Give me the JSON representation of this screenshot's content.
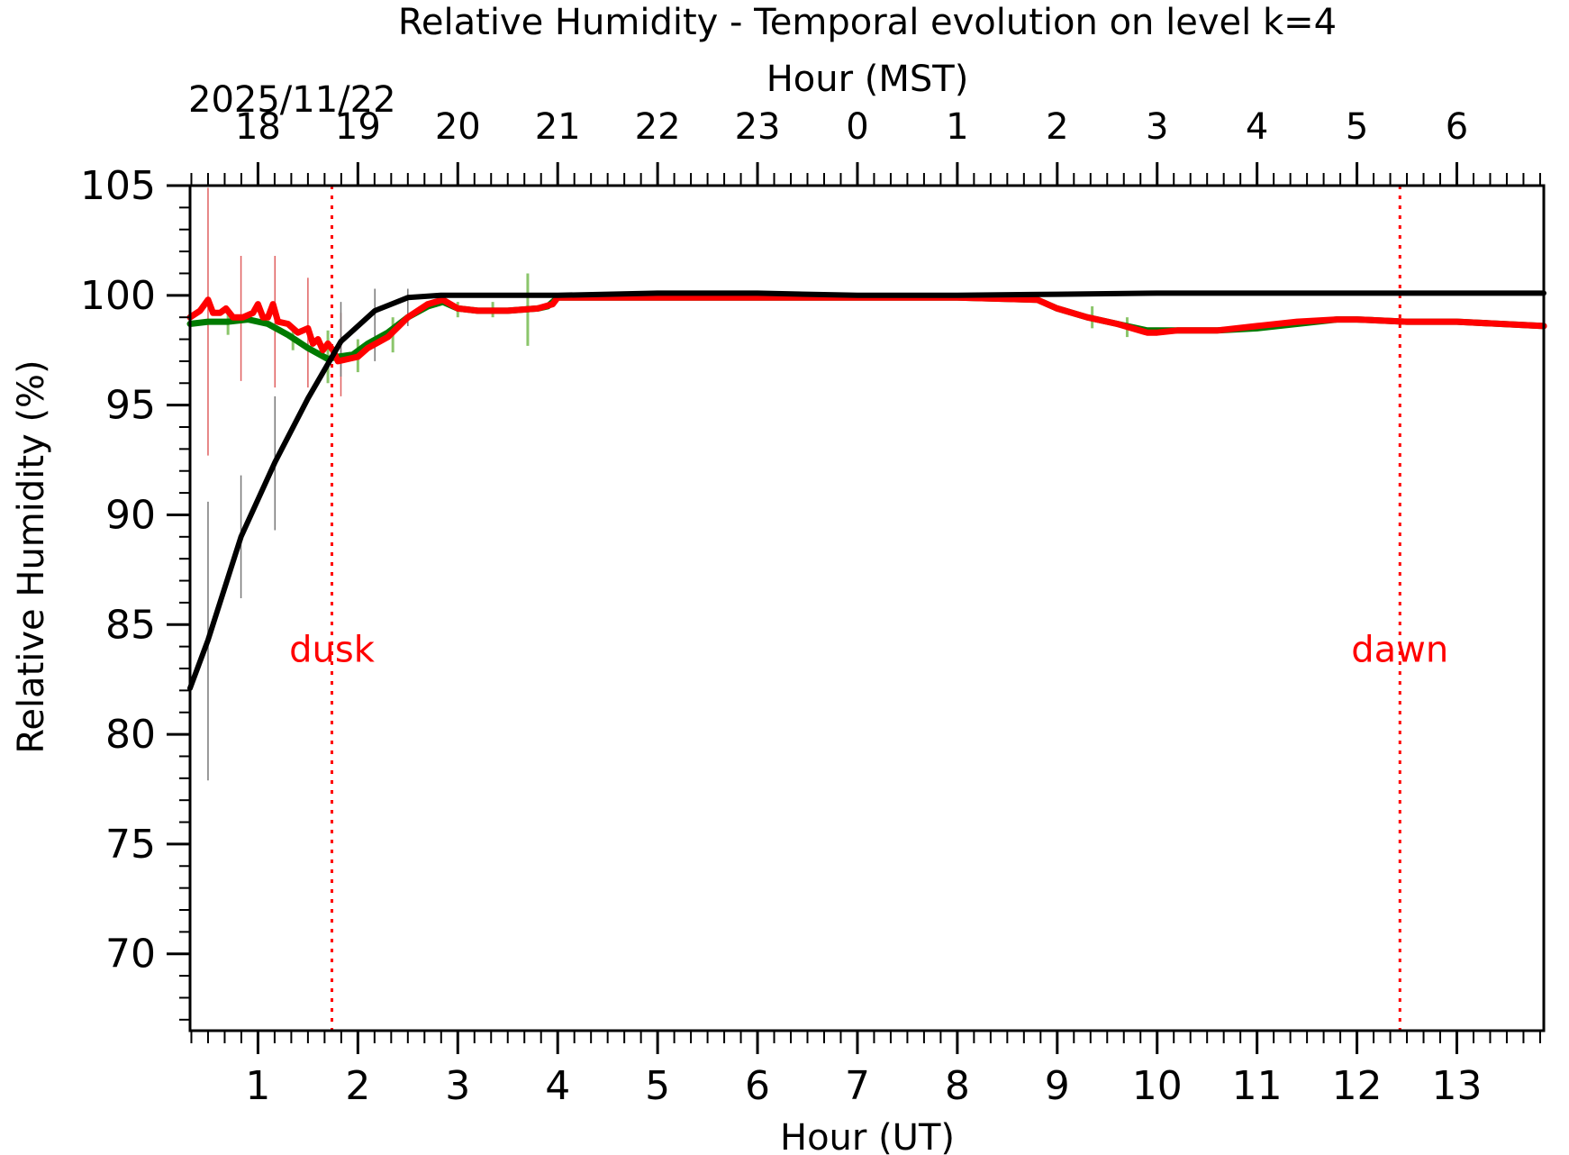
{
  "chart_data": {
    "type": "line",
    "title": "Relative Humidity - Temporal evolution on level k=4",
    "date_label": "2025/11/22",
    "xlabel": "Hour (UT)",
    "x2label": "Hour (MST)",
    "ylabel": "Relative Humidity (%)",
    "xlim": [
      0.32,
      13.87
    ],
    "ylim": [
      66.5,
      105
    ],
    "x_ticks": [
      1,
      2,
      3,
      4,
      5,
      6,
      7,
      8,
      9,
      10,
      11,
      12,
      13
    ],
    "x_tick_labels": [
      "1",
      "2",
      "3",
      "4",
      "5",
      "6",
      "7",
      "8",
      "9",
      "10",
      "11",
      "12",
      "13"
    ],
    "x2_ticks": [
      1,
      2,
      3,
      4,
      5,
      6,
      7,
      8,
      9,
      10,
      11,
      12,
      13
    ],
    "x2_tick_labels": [
      "18",
      "19",
      "20",
      "21",
      "22",
      "23",
      "0",
      "1",
      "2",
      "3",
      "4",
      "5",
      "6"
    ],
    "y_ticks": [
      70,
      75,
      80,
      85,
      90,
      95,
      100,
      105
    ],
    "y_tick_labels": [
      "70",
      "75",
      "80",
      "85",
      "90",
      "95",
      "100",
      "105"
    ],
    "grid": false,
    "events": [
      {
        "name": "dusk",
        "x": 1.74,
        "color": "#ff0000",
        "label_y": 83.3
      },
      {
        "name": "dawn",
        "x": 12.43,
        "color": "#ff0000",
        "label_y": 83.3
      }
    ],
    "series": [
      {
        "name": "green",
        "color": "#007a00",
        "x": [
          0.32,
          0.5,
          0.7,
          0.9,
          1.1,
          1.3,
          1.5,
          1.7,
          1.8,
          1.95,
          2.1,
          2.3,
          2.5,
          2.7,
          2.85,
          3.0,
          3.2,
          3.5,
          3.8,
          3.9,
          4.0,
          4.5,
          5.0,
          6.0,
          7.0,
          8.0,
          8.8,
          9.0,
          9.3,
          9.6,
          9.9,
          10.2,
          10.6,
          11.0,
          11.4,
          11.8,
          12.0,
          12.5,
          13.0,
          13.87
        ],
        "y": [
          98.7,
          98.8,
          98.8,
          98.9,
          98.7,
          98.2,
          97.6,
          97.1,
          97.2,
          97.3,
          97.8,
          98.3,
          99.0,
          99.5,
          99.7,
          99.4,
          99.3,
          99.3,
          99.4,
          99.5,
          99.9,
          99.9,
          99.9,
          99.9,
          99.9,
          99.9,
          99.8,
          99.4,
          99.0,
          98.7,
          98.4,
          98.4,
          98.4,
          98.5,
          98.7,
          98.9,
          98.9,
          98.8,
          98.8,
          98.6
        ]
      },
      {
        "name": "red",
        "color": "#ff0000",
        "x": [
          0.32,
          0.42,
          0.5,
          0.55,
          0.62,
          0.68,
          0.75,
          0.85,
          0.95,
          1.0,
          1.05,
          1.1,
          1.15,
          1.2,
          1.3,
          1.4,
          1.5,
          1.55,
          1.6,
          1.65,
          1.7,
          1.75,
          1.8,
          1.9,
          2.0,
          2.1,
          2.3,
          2.5,
          2.7,
          2.85,
          3.0,
          3.2,
          3.5,
          3.8,
          3.95,
          4.0,
          4.5,
          5.0,
          6.0,
          7.0,
          8.0,
          8.8,
          9.0,
          9.3,
          9.6,
          9.9,
          10.0,
          10.2,
          10.6,
          11.0,
          11.4,
          11.8,
          12.0,
          12.5,
          13.0,
          13.87
        ],
        "y": [
          99.0,
          99.3,
          99.8,
          99.2,
          99.2,
          99.4,
          99.0,
          99.0,
          99.2,
          99.6,
          99.0,
          99.0,
          99.6,
          98.8,
          98.7,
          98.3,
          98.5,
          97.8,
          98.0,
          97.5,
          97.8,
          97.5,
          97.0,
          97.1,
          97.2,
          97.6,
          98.1,
          99.0,
          99.6,
          99.8,
          99.4,
          99.3,
          99.3,
          99.4,
          99.6,
          99.9,
          99.9,
          99.9,
          99.9,
          99.9,
          99.9,
          99.8,
          99.4,
          99.0,
          98.7,
          98.3,
          98.3,
          98.4,
          98.4,
          98.6,
          98.8,
          98.9,
          98.9,
          98.8,
          98.8,
          98.6
        ]
      },
      {
        "name": "black",
        "color": "#000000",
        "x": [
          0.32,
          0.5,
          0.83,
          1.17,
          1.5,
          1.83,
          2.17,
          2.5,
          2.83,
          3.17,
          3.5,
          4.0,
          4.5,
          5.0,
          6.0,
          7.0,
          8.0,
          9.0,
          10.0,
          11.0,
          12.0,
          13.0,
          13.87
        ],
        "y": [
          82.1,
          84.3,
          89.0,
          92.4,
          95.3,
          97.9,
          99.3,
          99.9,
          100.0,
          100.0,
          100.0,
          100.0,
          100.05,
          100.1,
          100.1,
          100.0,
          100.0,
          100.05,
          100.1,
          100.1,
          100.1,
          100.1,
          100.1
        ]
      }
    ],
    "error_bars": [
      {
        "series": "red",
        "color": "#e06060",
        "bars": [
          [
            0.5,
            92.7,
            104.9
          ],
          [
            0.83,
            96.1,
            101.8
          ],
          [
            1.17,
            95.8,
            101.8
          ],
          [
            1.5,
            95.8,
            100.8
          ],
          [
            1.83,
            95.4,
            99.2
          ]
        ]
      },
      {
        "series": "black",
        "color": "#777777",
        "bars": [
          [
            0.5,
            77.9,
            90.6
          ],
          [
            0.83,
            86.2,
            91.8
          ],
          [
            1.17,
            89.3,
            95.4
          ],
          [
            1.83,
            96.3,
            99.7
          ],
          [
            2.17,
            97.0,
            100.3
          ],
          [
            2.5,
            98.6,
            100.3
          ]
        ]
      },
      {
        "series": "green",
        "color": "#8bc56b",
        "bars": [
          [
            0.7,
            98.2,
            99.3
          ],
          [
            1.35,
            97.5,
            98.6
          ],
          [
            1.7,
            96.0,
            98.4
          ],
          [
            2.0,
            96.5,
            98.0
          ],
          [
            2.35,
            97.4,
            99.0
          ],
          [
            3.0,
            99.0,
            99.7
          ],
          [
            3.35,
            99.0,
            99.7
          ],
          [
            3.7,
            97.7,
            101.0
          ],
          [
            9.35,
            98.5,
            99.5
          ],
          [
            9.7,
            98.1,
            99.0
          ]
        ]
      }
    ]
  }
}
